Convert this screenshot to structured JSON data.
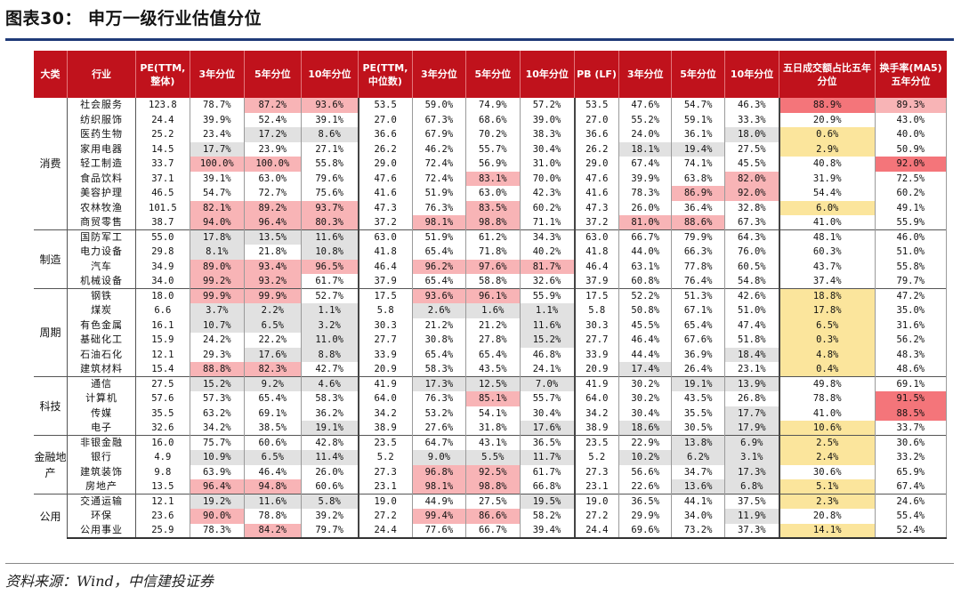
{
  "title": "图表30：  申万一级行业估值分位",
  "source": "资料来源：Wind，中信建投证券",
  "colors": {
    "header_bg": "#c0121c",
    "highlight_red": "#f8b4b6",
    "highlight_gray": "#e1e1e1",
    "highlight_yellow": "#fbe59c",
    "highlight_red_strong": "#f4757a",
    "title_rule": "#1f3a78"
  },
  "headers": [
    "大类",
    "行业",
    "PE(TTM,整体)",
    "3年分位",
    "5年分位",
    "10年分位",
    "PE(TTM,中位数)",
    "3年分位",
    "5年分位",
    "10年分位",
    "PB (LF)",
    "3年分位",
    "5年分位",
    "10年分位",
    "五日成交额占比五年分位",
    "换手率(MA5)五年分位"
  ],
  "groups": [
    {
      "name": "消费",
      "rows": [
        {
          "industry": "社会服务",
          "cells": [
            "123.8",
            "78.7%",
            "87.2%",
            "93.6%",
            "53.5",
            "59.0%",
            "74.9%",
            "57.2%",
            "53.5",
            "47.6%",
            "54.7%",
            "46.3%",
            "88.9%",
            "89.3%"
          ],
          "marks": [
            "",
            "",
            "r",
            "r",
            "",
            "",
            "",
            "",
            "",
            "",
            "",
            "",
            "s",
            "r"
          ]
        },
        {
          "industry": "纺织服饰",
          "cells": [
            "24.4",
            "39.9%",
            "52.4%",
            "39.1%",
            "27.0",
            "67.3%",
            "68.6%",
            "39.0%",
            "27.0",
            "55.2%",
            "59.1%",
            "33.3%",
            "20.9%",
            "43.0%"
          ],
          "marks": [
            "",
            "",
            "",
            "",
            "",
            "",
            "",
            "",
            "",
            "",
            "",
            "",
            "",
            ""
          ]
        },
        {
          "industry": "医药生物",
          "cells": [
            "25.2",
            "23.4%",
            "17.2%",
            "8.6%",
            "36.6",
            "67.9%",
            "70.2%",
            "38.3%",
            "36.6",
            "24.0%",
            "36.1%",
            "18.0%",
            "0.6%",
            "40.0%"
          ],
          "marks": [
            "",
            "",
            "g",
            "g",
            "",
            "",
            "",
            "",
            "",
            "",
            "",
            "g",
            "y",
            ""
          ]
        },
        {
          "industry": "家用电器",
          "cells": [
            "14.5",
            "17.7%",
            "23.9%",
            "27.1%",
            "26.2",
            "46.2%",
            "55.7%",
            "30.4%",
            "26.2",
            "18.1%",
            "19.4%",
            "27.5%",
            "2.9%",
            "50.9%"
          ],
          "marks": [
            "",
            "g",
            "",
            "",
            "",
            "",
            "",
            "",
            "",
            "g",
            "g",
            "",
            "y",
            ""
          ]
        },
        {
          "industry": "轻工制造",
          "cells": [
            "33.7",
            "100.0%",
            "100.0%",
            "55.8%",
            "29.0",
            "72.4%",
            "56.9%",
            "31.0%",
            "29.0",
            "67.4%",
            "74.1%",
            "45.5%",
            "40.8%",
            "92.0%"
          ],
          "marks": [
            "",
            "r",
            "r",
            "",
            "",
            "",
            "",
            "",
            "",
            "",
            "",
            "",
            "",
            "s"
          ]
        },
        {
          "industry": "食品饮料",
          "cells": [
            "37.1",
            "39.1%",
            "63.0%",
            "79.6%",
            "47.6",
            "72.4%",
            "83.1%",
            "70.0%",
            "47.6",
            "39.9%",
            "63.8%",
            "82.0%",
            "31.9%",
            "72.5%"
          ],
          "marks": [
            "",
            "",
            "",
            "",
            "",
            "",
            "r",
            "",
            "",
            "",
            "",
            "r",
            "",
            ""
          ]
        },
        {
          "industry": "美容护理",
          "cells": [
            "46.5",
            "54.7%",
            "72.7%",
            "75.6%",
            "41.6",
            "51.9%",
            "63.0%",
            "42.3%",
            "41.6",
            "78.3%",
            "86.9%",
            "92.0%",
            "54.4%",
            "60.2%"
          ],
          "marks": [
            "",
            "",
            "",
            "",
            "",
            "",
            "",
            "",
            "",
            "",
            "r",
            "r",
            "",
            ""
          ]
        },
        {
          "industry": "农林牧渔",
          "cells": [
            "101.5",
            "82.1%",
            "89.2%",
            "93.7%",
            "47.3",
            "76.3%",
            "83.5%",
            "60.2%",
            "47.3",
            "26.0%",
            "36.4%",
            "32.8%",
            "6.0%",
            "49.1%"
          ],
          "marks": [
            "",
            "r",
            "r",
            "r",
            "",
            "",
            "r",
            "",
            "",
            "",
            "",
            "",
            "y",
            ""
          ]
        },
        {
          "industry": "商贸零售",
          "cells": [
            "38.7",
            "94.0%",
            "96.4%",
            "80.3%",
            "37.2",
            "98.1%",
            "98.8%",
            "71.1%",
            "37.2",
            "81.0%",
            "88.6%",
            "67.3%",
            "41.0%",
            "55.9%"
          ],
          "marks": [
            "",
            "r",
            "r",
            "r",
            "",
            "r",
            "r",
            "",
            "",
            "r",
            "r",
            "",
            "",
            ""
          ]
        }
      ]
    },
    {
      "name": "制造",
      "rows": [
        {
          "industry": "国防军工",
          "cells": [
            "55.0",
            "17.8%",
            "13.5%",
            "11.6%",
            "63.0",
            "51.9%",
            "61.2%",
            "34.3%",
            "63.0",
            "66.7%",
            "79.9%",
            "64.3%",
            "48.1%",
            "46.0%"
          ],
          "marks": [
            "",
            "g",
            "g",
            "g",
            "",
            "",
            "",
            "",
            "",
            "",
            "",
            "",
            "",
            ""
          ]
        },
        {
          "industry": "电力设备",
          "cells": [
            "29.8",
            "8.1%",
            "21.8%",
            "10.8%",
            "41.8",
            "65.4%",
            "71.8%",
            "40.2%",
            "41.8",
            "44.0%",
            "66.3%",
            "76.0%",
            "60.3%",
            "51.0%"
          ],
          "marks": [
            "",
            "g",
            "",
            "g",
            "",
            "",
            "",
            "",
            "",
            "",
            "",
            "",
            "",
            ""
          ]
        },
        {
          "industry": "汽车",
          "cells": [
            "34.9",
            "89.0%",
            "93.4%",
            "96.5%",
            "46.4",
            "96.2%",
            "97.6%",
            "81.7%",
            "46.4",
            "63.1%",
            "77.8%",
            "60.5%",
            "43.7%",
            "55.8%"
          ],
          "marks": [
            "",
            "r",
            "r",
            "r",
            "",
            "r",
            "r",
            "r",
            "",
            "",
            "",
            "",
            "",
            ""
          ]
        },
        {
          "industry": "机械设备",
          "cells": [
            "34.0",
            "99.2%",
            "93.2%",
            "61.7%",
            "37.9",
            "65.4%",
            "58.8%",
            "32.6%",
            "37.9",
            "60.8%",
            "76.4%",
            "54.8%",
            "37.4%",
            "79.7%"
          ],
          "marks": [
            "",
            "r",
            "r",
            "",
            "",
            "",
            "",
            "",
            "",
            "",
            "",
            "",
            "",
            ""
          ]
        }
      ]
    },
    {
      "name": "周期",
      "rows": [
        {
          "industry": "钢铁",
          "cells": [
            "18.0",
            "99.9%",
            "99.9%",
            "52.7%",
            "17.5",
            "93.6%",
            "96.1%",
            "55.9%",
            "17.5",
            "52.2%",
            "51.3%",
            "42.6%",
            "18.8%",
            "47.2%"
          ],
          "marks": [
            "",
            "r",
            "r",
            "",
            "",
            "r",
            "r",
            "",
            "",
            "",
            "",
            "",
            "y",
            ""
          ]
        },
        {
          "industry": "煤炭",
          "cells": [
            "6.6",
            "3.7%",
            "2.2%",
            "1.1%",
            "5.8",
            "2.6%",
            "1.6%",
            "1.1%",
            "5.8",
            "50.8%",
            "67.1%",
            "51.0%",
            "17.8%",
            "35.0%"
          ],
          "marks": [
            "",
            "g",
            "g",
            "g",
            "",
            "g",
            "g",
            "g",
            "",
            "",
            "",
            "",
            "y",
            ""
          ]
        },
        {
          "industry": "有色金属",
          "cells": [
            "16.1",
            "10.7%",
            "6.5%",
            "3.2%",
            "30.3",
            "21.2%",
            "21.2%",
            "11.6%",
            "30.3",
            "45.5%",
            "65.4%",
            "47.4%",
            "6.5%",
            "31.6%"
          ],
          "marks": [
            "",
            "g",
            "g",
            "g",
            "",
            "",
            "",
            "g",
            "",
            "",
            "",
            "",
            "y",
            ""
          ]
        },
        {
          "industry": "基础化工",
          "cells": [
            "15.9",
            "24.2%",
            "22.2%",
            "11.0%",
            "27.7",
            "30.8%",
            "27.8%",
            "15.2%",
            "27.7",
            "46.4%",
            "67.6%",
            "51.8%",
            "0.3%",
            "56.2%"
          ],
          "marks": [
            "",
            "",
            "",
            "g",
            "",
            "",
            "",
            "g",
            "",
            "",
            "",
            "",
            "y",
            ""
          ]
        },
        {
          "industry": "石油石化",
          "cells": [
            "12.1",
            "29.3%",
            "17.6%",
            "8.8%",
            "33.9",
            "65.4%",
            "65.4%",
            "46.8%",
            "33.9",
            "44.4%",
            "36.9%",
            "18.4%",
            "4.8%",
            "48.3%"
          ],
          "marks": [
            "",
            "",
            "g",
            "g",
            "",
            "",
            "",
            "",
            "",
            "",
            "",
            "g",
            "y",
            ""
          ]
        },
        {
          "industry": "建筑材料",
          "cells": [
            "15.4",
            "88.8%",
            "82.3%",
            "42.7%",
            "20.9",
            "58.3%",
            "43.5%",
            "24.1%",
            "20.9",
            "17.4%",
            "26.4%",
            "23.1%",
            "0.4%",
            "48.6%"
          ],
          "marks": [
            "",
            "r",
            "r",
            "",
            "",
            "",
            "",
            "",
            "",
            "g",
            "",
            "",
            "y",
            ""
          ]
        }
      ]
    },
    {
      "name": "科技",
      "rows": [
        {
          "industry": "通信",
          "cells": [
            "27.5",
            "15.2%",
            "9.2%",
            "4.6%",
            "41.9",
            "17.3%",
            "12.5%",
            "7.0%",
            "41.9",
            "30.2%",
            "19.1%",
            "13.9%",
            "49.8%",
            "69.1%"
          ],
          "marks": [
            "",
            "g",
            "g",
            "g",
            "",
            "g",
            "g",
            "g",
            "",
            "",
            "g",
            "g",
            "",
            ""
          ]
        },
        {
          "industry": "计算机",
          "cells": [
            "57.6",
            "57.3%",
            "65.4%",
            "58.3%",
            "64.0",
            "76.3%",
            "85.1%",
            "55.7%",
            "64.0",
            "30.2%",
            "43.5%",
            "26.8%",
            "78.8%",
            "91.5%"
          ],
          "marks": [
            "",
            "",
            "",
            "",
            "",
            "",
            "r",
            "",
            "",
            "",
            "",
            "",
            "",
            "s"
          ]
        },
        {
          "industry": "传媒",
          "cells": [
            "35.5",
            "63.2%",
            "69.1%",
            "36.2%",
            "34.2",
            "53.2%",
            "54.1%",
            "30.4%",
            "34.2",
            "30.4%",
            "35.5%",
            "17.7%",
            "41.0%",
            "88.5%"
          ],
          "marks": [
            "",
            "",
            "",
            "",
            "",
            "",
            "",
            "",
            "",
            "",
            "",
            "g",
            "",
            "s"
          ]
        },
        {
          "industry": "电子",
          "cells": [
            "32.6",
            "34.2%",
            "38.5%",
            "19.1%",
            "38.9",
            "27.6%",
            "31.8%",
            "17.6%",
            "38.9",
            "18.6%",
            "30.5%",
            "17.9%",
            "10.6%",
            "33.7%"
          ],
          "marks": [
            "",
            "",
            "",
            "g",
            "",
            "",
            "",
            "g",
            "",
            "g",
            "",
            "g",
            "y",
            ""
          ]
        }
      ]
    },
    {
      "name": "金融地产",
      "rows": [
        {
          "industry": "非银金融",
          "cells": [
            "16.0",
            "75.7%",
            "60.6%",
            "42.8%",
            "23.5",
            "64.7%",
            "43.1%",
            "36.5%",
            "23.5",
            "22.9%",
            "13.8%",
            "6.9%",
            "2.5%",
            "30.6%"
          ],
          "marks": [
            "",
            "",
            "",
            "",
            "",
            "",
            "",
            "",
            "",
            "",
            "g",
            "g",
            "y",
            ""
          ]
        },
        {
          "industry": "银行",
          "cells": [
            "4.9",
            "10.9%",
            "6.5%",
            "11.4%",
            "5.2",
            "9.0%",
            "5.5%",
            "11.7%",
            "5.2",
            "10.2%",
            "6.2%",
            "3.1%",
            "2.4%",
            "33.2%"
          ],
          "marks": [
            "",
            "g",
            "g",
            "g",
            "",
            "g",
            "g",
            "g",
            "",
            "g",
            "g",
            "g",
            "y",
            ""
          ]
        },
        {
          "industry": "建筑装饰",
          "cells": [
            "9.8",
            "63.9%",
            "46.4%",
            "26.0%",
            "27.3",
            "96.8%",
            "92.5%",
            "61.7%",
            "27.3",
            "56.6%",
            "34.7%",
            "17.3%",
            "30.6%",
            "65.9%"
          ],
          "marks": [
            "",
            "",
            "",
            "",
            "",
            "r",
            "r",
            "",
            "",
            "",
            "",
            "g",
            "",
            ""
          ]
        },
        {
          "industry": "房地产",
          "cells": [
            "13.5",
            "96.4%",
            "94.8%",
            "60.6%",
            "23.1",
            "98.1%",
            "98.8%",
            "66.8%",
            "23.1",
            "22.6%",
            "13.6%",
            "6.8%",
            "5.1%",
            "67.4%"
          ],
          "marks": [
            "",
            "r",
            "r",
            "",
            "",
            "r",
            "r",
            "",
            "",
            "",
            "g",
            "g",
            "y",
            ""
          ]
        }
      ]
    },
    {
      "name": "公用",
      "rows": [
        {
          "industry": "交通运输",
          "cells": [
            "12.1",
            "19.2%",
            "11.6%",
            "5.8%",
            "19.0",
            "44.9%",
            "27.5%",
            "19.5%",
            "19.0",
            "36.5%",
            "44.1%",
            "37.5%",
            "2.3%",
            "24.6%"
          ],
          "marks": [
            "",
            "g",
            "g",
            "g",
            "",
            "",
            "",
            "g",
            "",
            "",
            "",
            "",
            "y",
            ""
          ]
        },
        {
          "industry": "环保",
          "cells": [
            "23.6",
            "90.0%",
            "78.8%",
            "39.2%",
            "27.2",
            "99.4%",
            "86.6%",
            "58.2%",
            "27.2",
            "29.9%",
            "34.0%",
            "11.9%",
            "20.8%",
            "55.4%"
          ],
          "marks": [
            "",
            "r",
            "",
            "",
            "",
            "r",
            "r",
            "",
            "",
            "",
            "",
            "g",
            "",
            ""
          ]
        },
        {
          "industry": "公用事业",
          "cells": [
            "25.9",
            "78.3%",
            "84.2%",
            "79.7%",
            "24.4",
            "77.6%",
            "66.7%",
            "39.4%",
            "24.4",
            "69.6%",
            "73.2%",
            "37.3%",
            "14.1%",
            "52.4%"
          ],
          "marks": [
            "",
            "",
            "r",
            "",
            "",
            "",
            "",
            "",
            "",
            "",
            "",
            "",
            "y",
            ""
          ]
        }
      ]
    }
  ]
}
